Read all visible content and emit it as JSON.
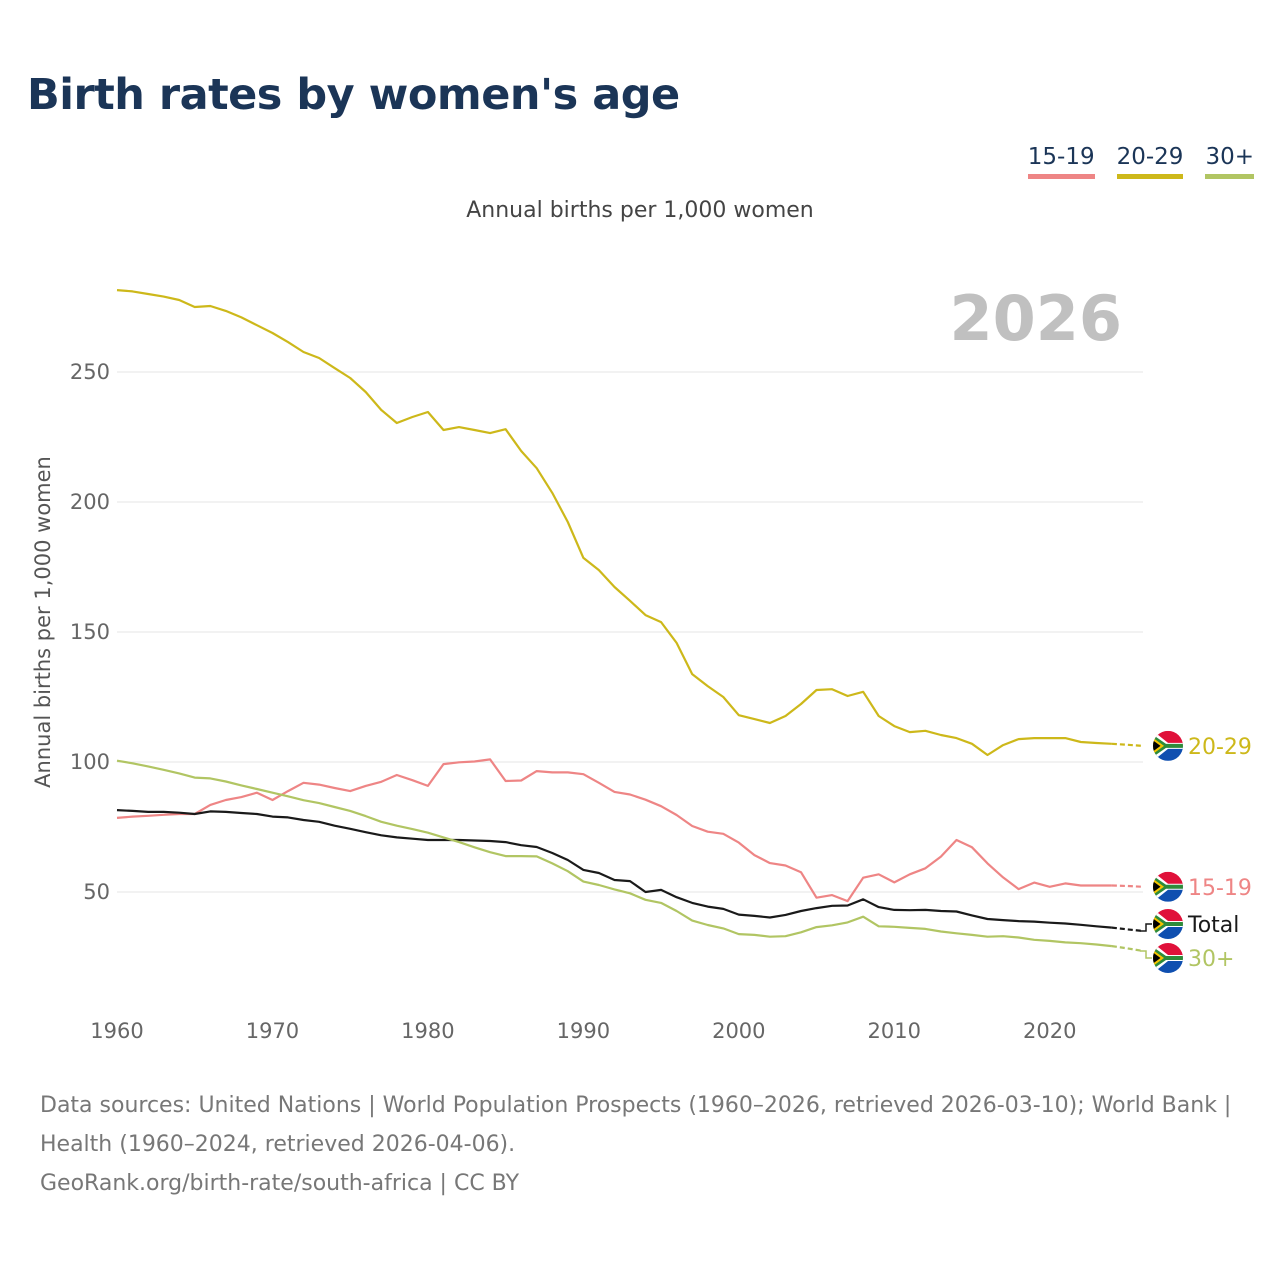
{
  "title": "Birth rates by women's age",
  "subtitle": "Annual births per 1,000 women",
  "legend": [
    {
      "label": "15-19",
      "color": "#ee8585"
    },
    {
      "label": "20-29",
      "color": "#cdb81a"
    },
    {
      "label": "30+",
      "color": "#b1c563"
    }
  ],
  "footer": {
    "sources": "Data sources: United Nations | World Population Prospects (1960–2026, retrieved 2026-03-10); World Bank | Health (1960–2024, retrieved 2026-04-06).",
    "credit": "GeoRank.org/birth-rate/south-africa | CC BY"
  },
  "chart_data": {
    "type": "line",
    "title": "Birth rates by women's age",
    "subtitle": "Annual births per 1,000 women",
    "xlabel": "",
    "ylabel": "Annual births per 1,000 women",
    "current_year_label": "2026",
    "xlim": [
      1960,
      2026
    ],
    "ylim": [
      0,
      280
    ],
    "x_ticks": [
      1960,
      1970,
      1980,
      1990,
      2000,
      2010,
      2020
    ],
    "y_ticks": [
      50,
      100,
      150,
      200,
      250
    ],
    "grid": true,
    "projection_start": 2024,
    "x_start": 1960,
    "series": [
      {
        "name": "20-29",
        "color": "#cdb81a",
        "values": [
          281.5,
          281,
          280,
          279,
          277.7,
          275,
          275.4,
          273.5,
          271,
          268,
          265,
          261.5,
          257.7,
          255.4,
          251.5,
          247.7,
          242.3,
          235.4,
          230.4,
          232.7,
          234.6,
          227.7,
          228.8,
          227.7,
          226.5,
          228,
          219.6,
          213,
          203.5,
          192.3,
          178.5,
          173.8,
          167.3,
          162,
          156.5,
          153.8,
          145.8,
          133.8,
          129.2,
          125,
          118,
          116.5,
          115,
          117.7,
          122.3,
          127.7,
          128,
          125.4,
          127,
          117.7,
          113.8,
          111.5,
          112,
          110.4,
          109.2,
          107,
          102.7,
          106.5,
          108.8,
          109.2,
          109.2,
          109.2,
          107.7,
          107.3,
          107,
          106.6,
          106.2
        ]
      },
      {
        "name": "15-19",
        "color": "#ee8585",
        "values": [
          78.5,
          79,
          79.3,
          79.7,
          80,
          80,
          83.5,
          85.4,
          86.5,
          88.2,
          85.4,
          88.8,
          92,
          91.3,
          90,
          88.8,
          90.8,
          92.4,
          95,
          93,
          90.8,
          99.2,
          99.9,
          100.2,
          101,
          92.7,
          92.9,
          96.5,
          96,
          96,
          95.3,
          92,
          88.5,
          87.5,
          85.5,
          83,
          79.6,
          75.4,
          73.2,
          72.4,
          69,
          64.2,
          61.1,
          60.2,
          57.6,
          47.8,
          48.8,
          46.5,
          55.5,
          56.8,
          53.7,
          56.8,
          59.1,
          63.6,
          70,
          67.2,
          61,
          55.6,
          51.1,
          53.6,
          52,
          53.3,
          52.5,
          52.5,
          52.5,
          52.3,
          52
        ]
      },
      {
        "name": "Total",
        "color": "#1a1a1a",
        "values": [
          81.5,
          81.2,
          80.8,
          80.8,
          80.5,
          80,
          81,
          80.8,
          80.4,
          80,
          79,
          78.7,
          77.7,
          77,
          75.5,
          74.3,
          73,
          71.8,
          71,
          70.5,
          70,
          70,
          70,
          69.8,
          69.6,
          69.2,
          68,
          67.3,
          65,
          62.3,
          58.5,
          57.3,
          54.6,
          54.2,
          50,
          50.8,
          48,
          45.8,
          44.4,
          43.5,
          41.3,
          40.8,
          40.2,
          41.2,
          42.7,
          43.8,
          44.7,
          44.8,
          47.2,
          44.2,
          43.1,
          43,
          43.1,
          42.7,
          42.5,
          41,
          39.6,
          39.2,
          38.8,
          38.6,
          38.2,
          37.9,
          37.4,
          36.8,
          36.3,
          35.6,
          35
        ]
      },
      {
        "name": "30+",
        "color": "#b1c563",
        "values": [
          100.5,
          99.5,
          98.3,
          97,
          95.6,
          94,
          93.7,
          92.5,
          91,
          89.6,
          88.2,
          86.8,
          85.3,
          84.2,
          82.7,
          81.2,
          79.2,
          77,
          75.5,
          74.2,
          72.8,
          71,
          69.2,
          67.2,
          65.3,
          63.8,
          63.8,
          63.7,
          61,
          58,
          54,
          52.7,
          51,
          49.5,
          47,
          45.8,
          42.7,
          39,
          37.3,
          36,
          33.8,
          33.5,
          32.8,
          33,
          34.5,
          36.5,
          37.2,
          38.3,
          40.5,
          36.8,
          36.6,
          36.2,
          35.8,
          34.8,
          34.1,
          33.5,
          32.8,
          33,
          32.5,
          31.6,
          31.2,
          30.6,
          30.3,
          29.8,
          29.2,
          28.3,
          27.3
        ]
      }
    ]
  }
}
